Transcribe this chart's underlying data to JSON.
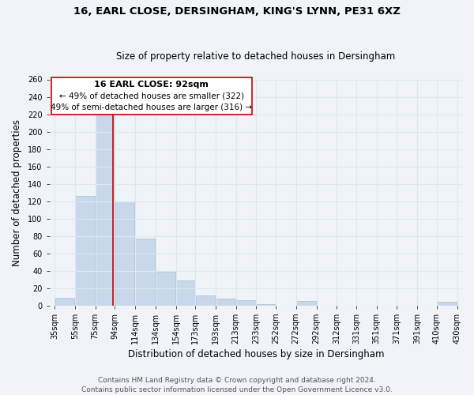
{
  "title": "16, EARL CLOSE, DERSINGHAM, KING'S LYNN, PE31 6XZ",
  "subtitle": "Size of property relative to detached houses in Dersingham",
  "xlabel": "Distribution of detached houses by size in Dersingham",
  "ylabel": "Number of detached properties",
  "bar_left_edges": [
    35,
    55,
    75,
    94,
    114,
    134,
    154,
    173,
    193,
    213,
    233,
    252,
    272,
    292,
    312,
    331,
    351,
    371,
    391,
    410
  ],
  "bar_widths": [
    20,
    20,
    19,
    20,
    20,
    20,
    19,
    20,
    20,
    20,
    19,
    20,
    20,
    20,
    19,
    20,
    20,
    20,
    19,
    20
  ],
  "bar_heights": [
    9,
    126,
    219,
    120,
    77,
    39,
    29,
    11,
    8,
    6,
    1,
    0,
    5,
    0,
    0,
    0,
    0,
    0,
    0,
    4
  ],
  "tick_labels": [
    "35sqm",
    "55sqm",
    "75sqm",
    "94sqm",
    "114sqm",
    "134sqm",
    "154sqm",
    "173sqm",
    "193sqm",
    "213sqm",
    "233sqm",
    "252sqm",
    "272sqm",
    "292sqm",
    "312sqm",
    "331sqm",
    "351sqm",
    "371sqm",
    "391sqm",
    "410sqm",
    "430sqm"
  ],
  "tick_positions": [
    35,
    55,
    75,
    94,
    114,
    134,
    154,
    173,
    193,
    213,
    233,
    252,
    272,
    292,
    312,
    331,
    351,
    371,
    391,
    410,
    430
  ],
  "bar_color": "#c8d8ea",
  "bar_edge_color": "#a8bcd0",
  "reference_line_x": 92,
  "reference_line_color": "#cc0000",
  "ylim": [
    0,
    260
  ],
  "xlim": [
    30,
    435
  ],
  "yticks": [
    0,
    20,
    40,
    60,
    80,
    100,
    120,
    140,
    160,
    180,
    200,
    220,
    240,
    260
  ],
  "annotation_box_text_line1": "16 EARL CLOSE: 92sqm",
  "annotation_box_text_line2": "← 49% of detached houses are smaller (322)",
  "annotation_box_text_line3": "49% of semi-detached houses are larger (316) →",
  "footer_line1": "Contains HM Land Registry data © Crown copyright and database right 2024.",
  "footer_line2": "Contains public sector information licensed under the Open Government Licence v3.0.",
  "background_color": "#f0f4f8",
  "grid_color": "#dce8f0",
  "title_fontsize": 9.5,
  "subtitle_fontsize": 8.5,
  "axis_label_fontsize": 8.5,
  "tick_fontsize": 7,
  "annotation_fontsize": 8,
  "footer_fontsize": 6.5
}
